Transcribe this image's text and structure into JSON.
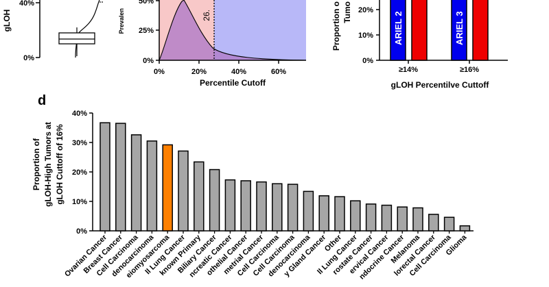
{
  "panel_letter": "d",
  "panel_a": {
    "ylabel_fragment": "gLOH",
    "ytick_labels": [
      "0%",
      "40%"
    ]
  },
  "panel_b": {
    "ylabel_fragment": "Prevalen",
    "ytick_labels": [
      "0%",
      "25%",
      "50%"
    ],
    "xtick_labels": [
      "0%",
      "20%",
      "40%",
      "60%"
    ],
    "xlabel": "Percentile Cutoff",
    "annotation": "26."
  },
  "panel_c": {
    "ylabel_line1": "Proportion o",
    "ylabel_line2": "Tumo",
    "ytick_labels": [
      "0%",
      "10%",
      "20%"
    ],
    "categories": [
      "≥14%",
      "≥16%"
    ],
    "bar_labels": [
      "ARIEL 2",
      "ARIEL 3"
    ],
    "xlabel": "gLOH Percentilve Cuttoff",
    "colors": {
      "blue": "#0000ee",
      "red": "#ee0000"
    }
  },
  "chart_data": {
    "type": "bar",
    "panel": "d",
    "ylabel": [
      "Proportion of",
      "gLOH-High Tumors at",
      "gLOH Cuttoff of 16%"
    ],
    "ylim": [
      0,
      40
    ],
    "ytick_labels": [
      "0%",
      "10%",
      "20%",
      "30%",
      "40%"
    ],
    "categories": [
      "Ovarian Cancer",
      "Breast Cancer",
      "Cell Carcinoma",
      "denocarcinoma",
      "eiomyosarcoma",
      "ll Lung Cancer",
      "known Primary",
      "Biliary Cancer",
      "ncreatic Cancer",
      "othelial Cancer",
      "metrial Cancer",
      "Cell Carcinoma",
      "Cell Carcinoma",
      "denocarcinoma",
      "y Gland Cancer",
      "Other",
      "ll Lung Cancer",
      "rostate Cancer",
      "ervical Cancer",
      "ndocrine Cancer",
      "Melanoma",
      "lorectal Cancer",
      "Cell Carcinoma",
      "Glioma"
    ],
    "values": [
      36.7,
      36.5,
      32.6,
      30.5,
      29.2,
      27.1,
      23.4,
      20.8,
      17.3,
      17.0,
      16.6,
      16.0,
      15.8,
      13.4,
      11.9,
      11.6,
      10.2,
      9.1,
      8.7,
      8.1,
      7.8,
      5.6,
      4.6,
      1.7
    ],
    "highlight_index": 4,
    "colors": {
      "bar": "#a6a6a6",
      "highlight": "#ff8000"
    }
  }
}
